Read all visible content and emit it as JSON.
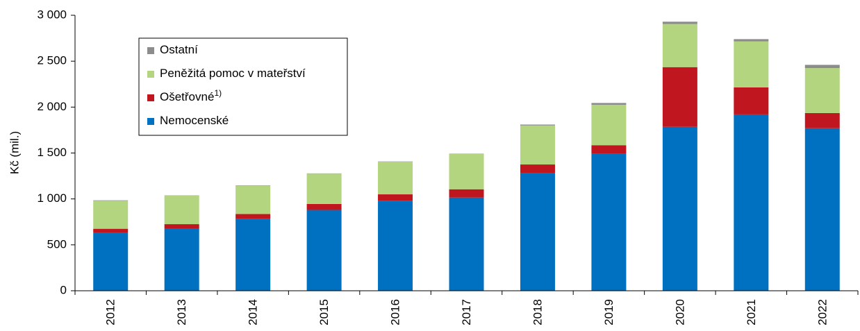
{
  "chart_data": {
    "type": "stacked_bar",
    "y_label": "Kč (mil.)",
    "categories": [
      "2012",
      "2013",
      "2014",
      "2015",
      "2016",
      "2017",
      "2018",
      "2019",
      "2020",
      "2021",
      "2022"
    ],
    "series": [
      {
        "name": "Nemocenské",
        "color": "#0070c0",
        "values": [
          630,
          680,
          785,
          880,
          980,
          1015,
          1280,
          1490,
          1785,
          1920,
          1770
        ]
      },
      {
        "name": "Ošetřovné",
        "name_superscript": "1)",
        "color": "#c0161f",
        "values": [
          45,
          45,
          50,
          65,
          70,
          90,
          95,
          95,
          650,
          295,
          165
        ]
      },
      {
        "name": "Peněžitá pomoc v mateřství",
        "color": "#b3d57f",
        "values": [
          305,
          310,
          310,
          330,
          355,
          385,
          425,
          440,
          470,
          500,
          490
        ]
      },
      {
        "name": "Ostatní",
        "color": "#8c8c8c",
        "values": [
          5,
          3,
          3,
          3,
          3,
          3,
          10,
          20,
          25,
          25,
          35
        ]
      }
    ],
    "ylim": [
      0,
      3000
    ],
    "yticks": [
      0,
      500,
      {
        "value": 1000,
        "label": "1 000"
      },
      {
        "value": 1500,
        "label": "1 500"
      },
      {
        "value": 2000,
        "label": "2 000"
      },
      {
        "value": 2500,
        "label": "2 500"
      },
      {
        "value": 3000,
        "label": "3 000"
      }
    ],
    "legend": "upper left"
  }
}
